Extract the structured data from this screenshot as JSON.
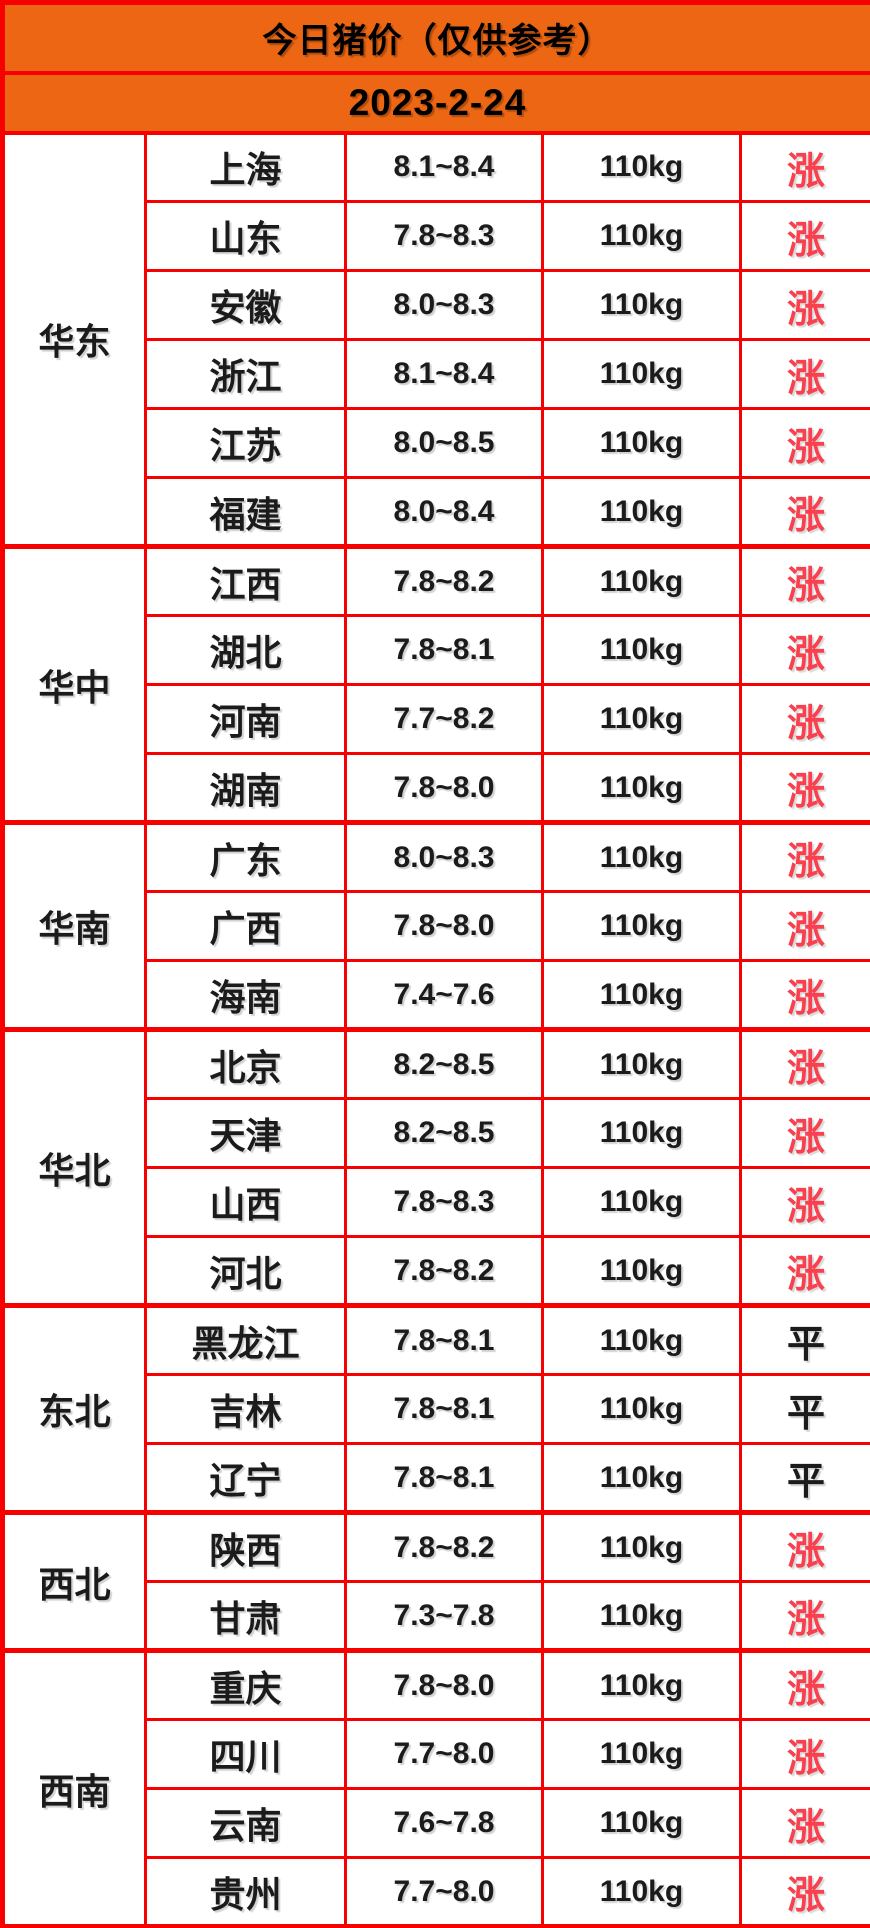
{
  "banner": {
    "title": "今日猪价（仅供参考）",
    "date": "2023-2-24"
  },
  "colors": {
    "banner_bg": "#ec6613",
    "grid_border": "#f70000",
    "trend_up_red": "#f8404e",
    "text_black": "#1b1b1b"
  },
  "chart_data": {
    "type": "table",
    "title": "今日猪价（仅供参考）",
    "date": "2023-2-24",
    "price_unit_note": "price range shown as min~max",
    "weight_standard": "110kg",
    "trend_values": {
      "up": "涨",
      "flat": "平"
    },
    "groups": [
      {
        "region": "华东",
        "rows": [
          {
            "province": "上海",
            "price": "8.1~8.4",
            "weight": "110kg",
            "trend": "涨",
            "trend_type": "up"
          },
          {
            "province": "山东",
            "price": "7.8~8.3",
            "weight": "110kg",
            "trend": "涨",
            "trend_type": "up"
          },
          {
            "province": "安徽",
            "price": "8.0~8.3",
            "weight": "110kg",
            "trend": "涨",
            "trend_type": "up"
          },
          {
            "province": "浙江",
            "price": "8.1~8.4",
            "weight": "110kg",
            "trend": "涨",
            "trend_type": "up"
          },
          {
            "province": "江苏",
            "price": "8.0~8.5",
            "weight": "110kg",
            "trend": "涨",
            "trend_type": "up"
          },
          {
            "province": "福建",
            "price": "8.0~8.4",
            "weight": "110kg",
            "trend": "涨",
            "trend_type": "up"
          }
        ]
      },
      {
        "region": "华中",
        "rows": [
          {
            "province": "江西",
            "price": "7.8~8.2",
            "weight": "110kg",
            "trend": "涨",
            "trend_type": "up"
          },
          {
            "province": "湖北",
            "price": "7.8~8.1",
            "weight": "110kg",
            "trend": "涨",
            "trend_type": "up"
          },
          {
            "province": "河南",
            "price": "7.7~8.2",
            "weight": "110kg",
            "trend": "涨",
            "trend_type": "up"
          },
          {
            "province": "湖南",
            "price": "7.8~8.0",
            "weight": "110kg",
            "trend": "涨",
            "trend_type": "up"
          }
        ]
      },
      {
        "region": "华南",
        "rows": [
          {
            "province": "广东",
            "price": "8.0~8.3",
            "weight": "110kg",
            "trend": "涨",
            "trend_type": "up"
          },
          {
            "province": "广西",
            "price": "7.8~8.0",
            "weight": "110kg",
            "trend": "涨",
            "trend_type": "up"
          },
          {
            "province": "海南",
            "price": "7.4~7.6",
            "weight": "110kg",
            "trend": "涨",
            "trend_type": "up"
          }
        ]
      },
      {
        "region": "华北",
        "rows": [
          {
            "province": "北京",
            "price": "8.2~8.5",
            "weight": "110kg",
            "trend": "涨",
            "trend_type": "up"
          },
          {
            "province": "天津",
            "price": "8.2~8.5",
            "weight": "110kg",
            "trend": "涨",
            "trend_type": "up"
          },
          {
            "province": "山西",
            "price": "7.8~8.3",
            "weight": "110kg",
            "trend": "涨",
            "trend_type": "up"
          },
          {
            "province": "河北",
            "price": "7.8~8.2",
            "weight": "110kg",
            "trend": "涨",
            "trend_type": "up"
          }
        ]
      },
      {
        "region": "东北",
        "rows": [
          {
            "province": "黑龙江",
            "price": "7.8~8.1",
            "weight": "110kg",
            "trend": "平",
            "trend_type": "flat"
          },
          {
            "province": "吉林",
            "price": "7.8~8.1",
            "weight": "110kg",
            "trend": "平",
            "trend_type": "flat"
          },
          {
            "province": "辽宁",
            "price": "7.8~8.1",
            "weight": "110kg",
            "trend": "平",
            "trend_type": "flat"
          }
        ]
      },
      {
        "region": "西北",
        "rows": [
          {
            "province": "陕西",
            "price": "7.8~8.2",
            "weight": "110kg",
            "trend": "涨",
            "trend_type": "up"
          },
          {
            "province": "甘肃",
            "price": "7.3~7.8",
            "weight": "110kg",
            "trend": "涨",
            "trend_type": "up"
          }
        ]
      },
      {
        "region": "西南",
        "rows": [
          {
            "province": "重庆",
            "price": "7.8~8.0",
            "weight": "110kg",
            "trend": "涨",
            "trend_type": "up"
          },
          {
            "province": "四川",
            "price": "7.7~8.0",
            "weight": "110kg",
            "trend": "涨",
            "trend_type": "up"
          },
          {
            "province": "云南",
            "price": "7.6~7.8",
            "weight": "110kg",
            "trend": "涨",
            "trend_type": "up"
          },
          {
            "province": "贵州",
            "price": "7.7~8.0",
            "weight": "110kg",
            "trend": "涨",
            "trend_type": "up"
          }
        ]
      }
    ]
  }
}
